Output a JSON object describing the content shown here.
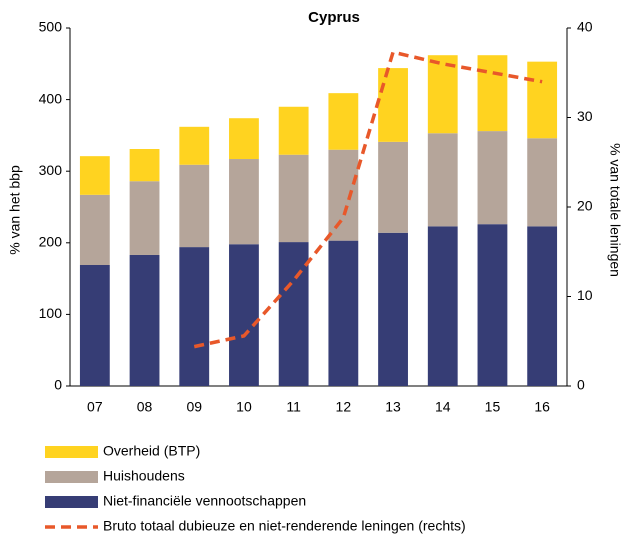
{
  "chart_data": {
    "type": "stacked-bar-line",
    "title": "Cyprus",
    "y_label": "% van het bbp",
    "y2_label": "% van totale leningen",
    "categories": [
      "07",
      "08",
      "09",
      "10",
      "11",
      "12",
      "13",
      "14",
      "15",
      "16"
    ],
    "series": [
      {
        "name": "Niet-financiële vennootschappen",
        "color": "#363d75",
        "type": "bar",
        "values": [
          169,
          183,
          194,
          198,
          201,
          203,
          214,
          223,
          226,
          223
        ]
      },
      {
        "name": "Huishoudens",
        "color": "#b5a59a",
        "type": "bar",
        "values": [
          98,
          103,
          115,
          119,
          122,
          127,
          127,
          130,
          130,
          123
        ]
      },
      {
        "name": "Overheid (BTP)",
        "color": "#ffd320",
        "type": "bar",
        "values": [
          54,
          45,
          53,
          57,
          67,
          79,
          103,
          109,
          106,
          107
        ]
      },
      {
        "name": "Bruto totaal dubieuze en niet-renderende leningen (rechts)",
        "color": "#e8582a",
        "type": "line",
        "style": "dashed",
        "axis": "y2",
        "values": [
          null,
          null,
          4.4,
          5.6,
          11.8,
          18.8,
          37.3,
          36,
          35,
          34
        ]
      }
    ],
    "legend_order": [
      2,
      1,
      0,
      3
    ],
    "ylim": [
      0,
      500
    ],
    "yticks": [
      0,
      100,
      200,
      300,
      400,
      500
    ],
    "y2lim": [
      0,
      40
    ],
    "y2ticks": [
      0,
      10,
      20,
      30,
      40
    ]
  }
}
